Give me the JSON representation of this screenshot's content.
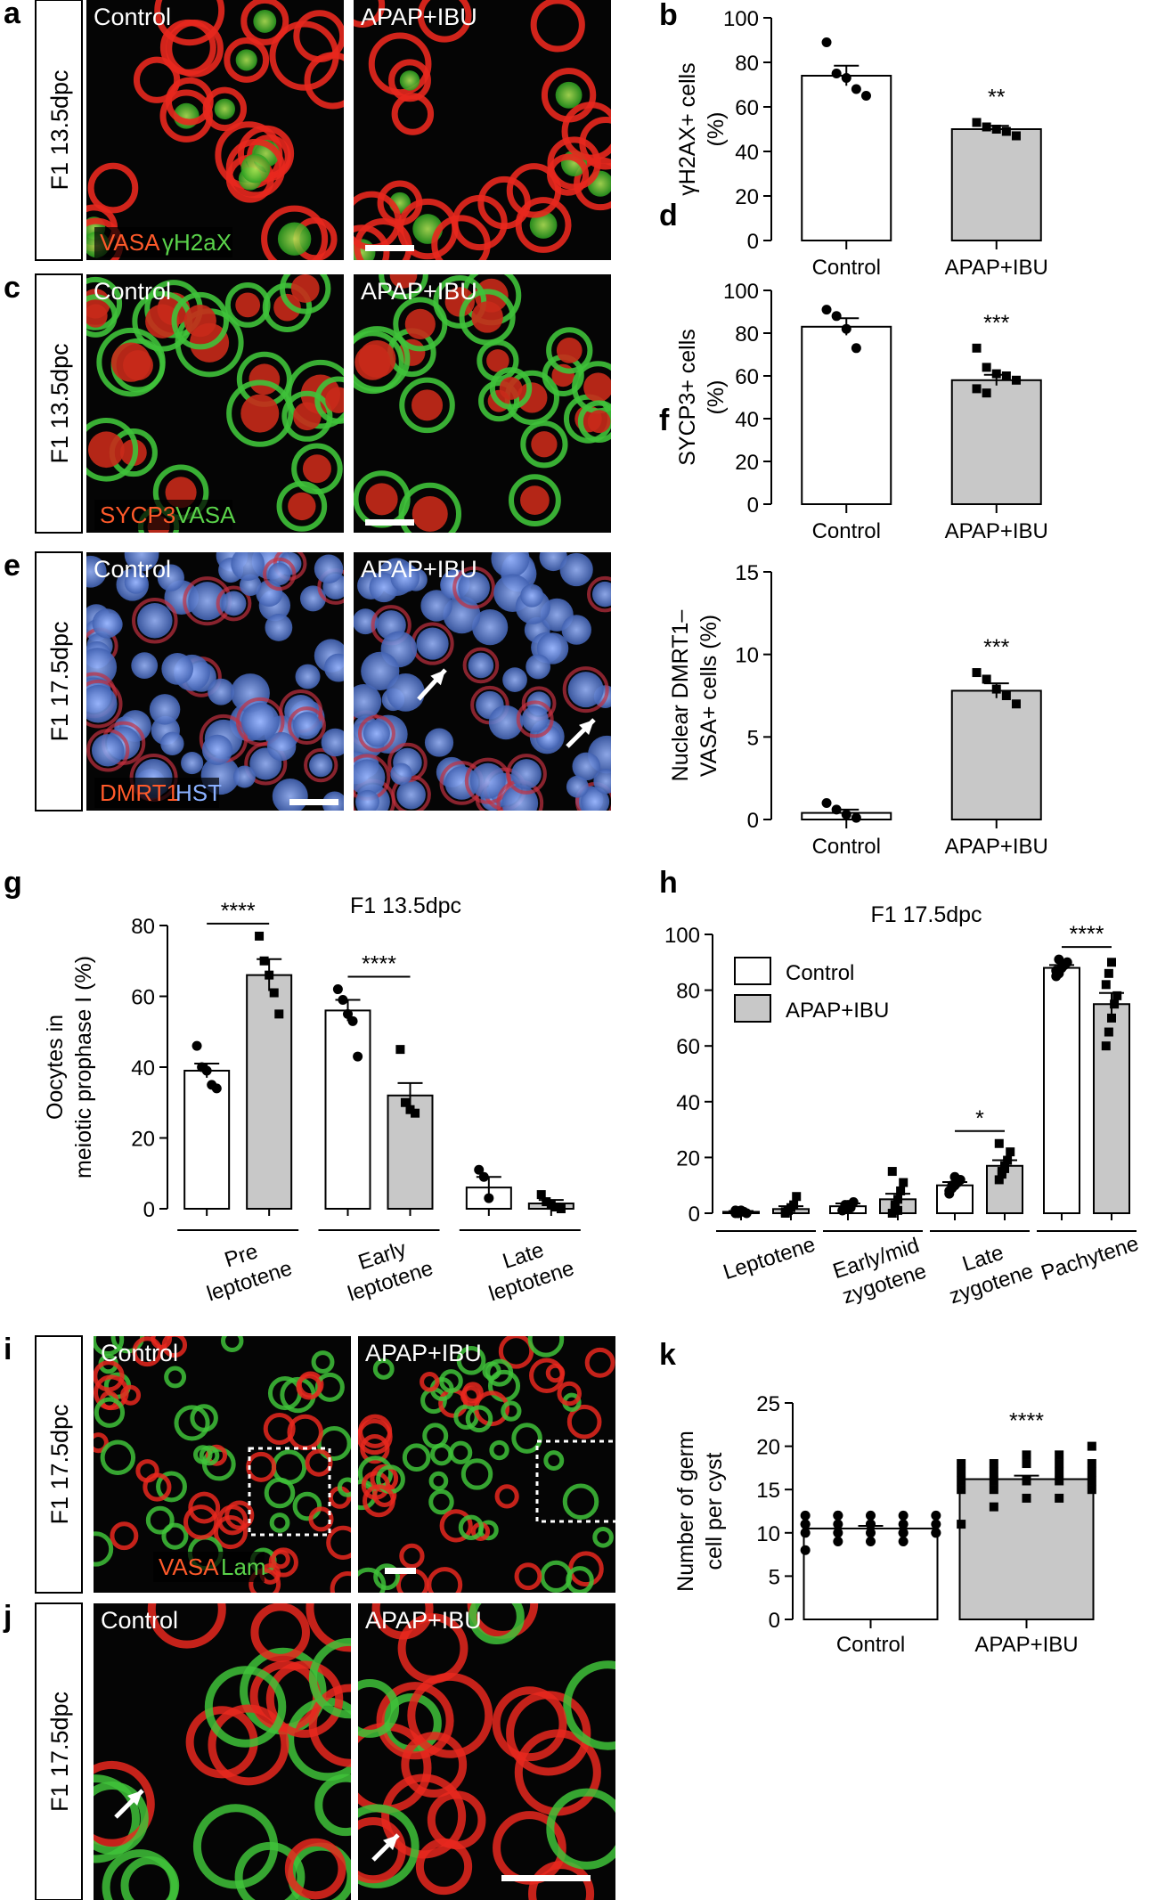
{
  "figure": {
    "panels": {
      "a": {
        "letter": "a",
        "stage": "F1 13.5dpc",
        "left_label": "Control",
        "right_label": "APAP+IBU",
        "stain_red": "VASA",
        "stain_green": "γH2aX"
      },
      "c": {
        "letter": "c",
        "stage": "F1 13.5dpc",
        "left_label": "Control",
        "right_label": "APAP+IBU",
        "stain_red": "SYCP3",
        "stain_green": "VASA"
      },
      "e": {
        "letter": "e",
        "stage": "F1 17.5dpc",
        "left_label": "Control",
        "right_label": "APAP+IBU",
        "stain_red": "DMRT1",
        "stain_blue": "HST"
      },
      "i": {
        "letter": "i",
        "stage": "F1 17.5dpc",
        "left_label": "Control",
        "right_label": "APAP+IBU",
        "stain_red": "VASA",
        "stain_green": "Lam"
      },
      "j": {
        "letter": "j",
        "stage": "F1 17.5dpc",
        "left_label": "Control",
        "right_label": "APAP+IBU"
      }
    },
    "colors": {
      "vasa_red": "#e8281e",
      "green": "#3fc23a",
      "hst_blue": "#6f8fd8",
      "dmrt1_red": "#e8482e",
      "control_bar": "#ffffff",
      "treated_bar": "#c8c8c8"
    }
  },
  "chart_data": [
    {
      "panel": "b",
      "type": "bar",
      "categories": [
        "Control",
        "APAP+IBU"
      ],
      "values": [
        74,
        50
      ],
      "errors": [
        4.5,
        1.5
      ],
      "points": [
        [
          89,
          75,
          73,
          68,
          65
        ],
        [
          53,
          51,
          50,
          49,
          47
        ]
      ],
      "ylabel": "γH2AX+ cells\n(%)",
      "ylim": [
        0,
        100
      ],
      "yticks": [
        0,
        20,
        40,
        60,
        80,
        100
      ],
      "significance": [
        "",
        "**"
      ]
    },
    {
      "panel": "d",
      "type": "bar",
      "categories": [
        "Control",
        "APAP+IBU"
      ],
      "values": [
        83,
        58
      ],
      "errors": [
        4,
        2.5
      ],
      "points": [
        [
          91,
          88,
          82,
          73
        ],
        [
          73,
          64,
          61,
          60,
          58,
          54,
          52
        ]
      ],
      "ylabel": "SYCP3+ cells\n(%)",
      "ylim": [
        0,
        100
      ],
      "yticks": [
        0,
        20,
        40,
        60,
        80,
        100
      ],
      "significance": [
        "",
        "***"
      ]
    },
    {
      "panel": "f",
      "type": "bar",
      "categories": [
        "Control",
        "APAP+IBU"
      ],
      "values": [
        0.4,
        7.8
      ],
      "errors": [
        0.2,
        0.45
      ],
      "points": [
        [
          1.0,
          0.6,
          0.3,
          0.1
        ],
        [
          8.9,
          8.5,
          7.9,
          7.5,
          7.0
        ]
      ],
      "ylabel": "Nuclear DMRT1–\nVASA+ cells (%)",
      "ylim": [
        0,
        15
      ],
      "yticks": [
        0,
        5,
        10,
        15
      ],
      "significance": [
        "",
        "***"
      ]
    },
    {
      "panel": "g",
      "type": "bar",
      "title": "F1 13.5dpc",
      "categories": [
        "Pre\nleptotene",
        "Early\nleptotene",
        "Late\nleptotene"
      ],
      "series": [
        {
          "name": "Control",
          "values": [
            39,
            56,
            6
          ],
          "errors": [
            2,
            3,
            3
          ],
          "points": [
            [
              46,
              40,
              39,
              35,
              34
            ],
            [
              62,
              59,
              55,
              53,
              43
            ],
            [
              11,
              9,
              3
            ]
          ]
        },
        {
          "name": "APAP+IBU",
          "values": [
            66,
            32,
            1.5
          ],
          "errors": [
            4.5,
            3.5,
            1
          ],
          "points": [
            [
              77,
              70,
              66,
              61,
              55
            ],
            [
              45,
              30,
              28,
              27
            ],
            [
              4,
              2,
              1,
              0.5,
              0
            ]
          ]
        }
      ],
      "ylabel": "Oocytes in\nmeiotic prophase I (%)",
      "ylim": [
        0,
        80
      ],
      "yticks": [
        0,
        20,
        40,
        60,
        80
      ],
      "significance": [
        "****",
        "****",
        ""
      ]
    },
    {
      "panel": "h",
      "type": "bar",
      "title": "F1 17.5dpc",
      "categories": [
        "Leptotene",
        "Early/mid\nzygotene",
        "Late\nzygotene",
        "Pachytene"
      ],
      "series": [
        {
          "name": "Control",
          "values": [
            0.5,
            2.5,
            10,
            88
          ],
          "errors": [
            0.3,
            1,
            1.2,
            1
          ],
          "points": [
            [
              0,
              0,
              1,
              0.5,
              0,
              1
            ],
            [
              1,
              2,
              3,
              2,
              4,
              1,
              3,
              2
            ],
            [
              7,
              9,
              10,
              11,
              12,
              8,
              10,
              13
            ],
            [
              85,
              86,
              88,
              89,
              90,
              87,
              91,
              88
            ]
          ]
        },
        {
          "name": "APAP+IBU",
          "values": [
            1.5,
            5,
            17,
            75
          ],
          "errors": [
            1,
            2,
            2,
            4
          ],
          "points": [
            [
              0,
              1,
              2,
              3,
              6,
              0.5,
              1
            ],
            [
              0,
              2,
              5,
              8,
              11,
              15,
              3,
              1
            ],
            [
              12,
              15,
              17,
              19,
              22,
              25,
              14,
              16
            ],
            [
              60,
              65,
              70,
              75,
              78,
              82,
              86,
              90
            ]
          ]
        }
      ],
      "ylim": [
        0,
        100
      ],
      "yticks": [
        0,
        20,
        40,
        60,
        80,
        100
      ],
      "legend": "top-left",
      "significance": [
        "",
        "",
        "*",
        "****"
      ]
    },
    {
      "panel": "k",
      "type": "bar",
      "categories": [
        "Control",
        "APAP+IBU"
      ],
      "values": [
        10.5,
        16.2
      ],
      "errors": [
        0.3,
        0.4
      ],
      "points": [
        [
          8,
          9,
          9,
          9,
          10,
          10,
          10,
          10,
          10,
          10,
          11,
          11,
          11,
          11,
          11,
          11,
          12,
          12,
          12,
          12,
          12,
          12,
          11,
          10
        ],
        [
          11,
          13,
          14,
          14,
          15,
          15,
          15,
          16,
          16,
          16,
          16,
          16,
          16,
          17,
          17,
          17,
          17,
          18,
          18,
          18,
          18,
          18,
          19,
          19,
          20
        ]
      ],
      "ylabel": "Number of germ\ncell per cyst",
      "ylim": [
        0,
        25
      ],
      "yticks": [
        0,
        5,
        10,
        15,
        20,
        25
      ],
      "significance": [
        "",
        "****"
      ]
    }
  ]
}
